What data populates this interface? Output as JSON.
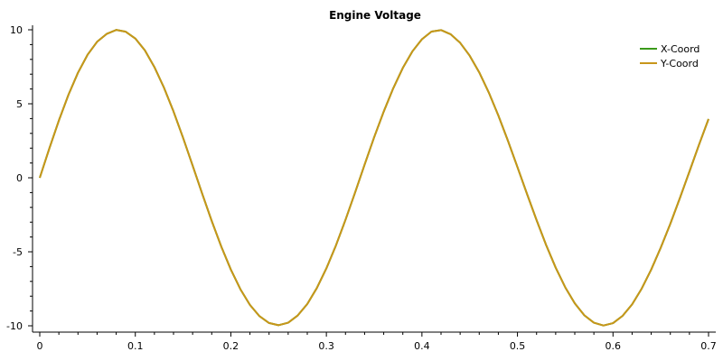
{
  "chart_data": {
    "type": "line",
    "title": "Engine Voltage",
    "xlabel": "",
    "ylabel": "",
    "xlim": [
      0,
      0.7
    ],
    "ylim": [
      -10,
      10
    ],
    "x_ticks": [
      0,
      0.1,
      0.2,
      0.3,
      0.4,
      0.5,
      0.6,
      0.7
    ],
    "x_tick_labels": [
      "0",
      "0.1",
      "0.2",
      "0.3",
      "0.4",
      "0.5",
      "0.6",
      "0.7"
    ],
    "y_ticks": [
      -10,
      -5,
      0,
      5,
      10
    ],
    "y_tick_labels": [
      "-10",
      "-5",
      "0",
      "5",
      "10"
    ],
    "grid": false,
    "legend_position": "top-right",
    "x": [
      0,
      0.01,
      0.02,
      0.03,
      0.04,
      0.05,
      0.06,
      0.07,
      0.08,
      0.09,
      0.1,
      0.11,
      0.12,
      0.13,
      0.14,
      0.15,
      0.16,
      0.17,
      0.18,
      0.19,
      0.2,
      0.21,
      0.22,
      0.23,
      0.24,
      0.25,
      0.26,
      0.27,
      0.28,
      0.29,
      0.3,
      0.31,
      0.32,
      0.33,
      0.34,
      0.35,
      0.36,
      0.37,
      0.38,
      0.39,
      0.4,
      0.41,
      0.42,
      0.43,
      0.44,
      0.45,
      0.46,
      0.47,
      0.48,
      0.49,
      0.5,
      0.51,
      0.52,
      0.53,
      0.54,
      0.55,
      0.56,
      0.57,
      0.58,
      0.59,
      0.6,
      0.61,
      0.62,
      0.63,
      0.64,
      0.65,
      0.66,
      0.67,
      0.68,
      0.69,
      0.7
    ],
    "series": [
      {
        "name": "X-Coord",
        "color": "#3a9a1a",
        "values": [
          0.0,
          1.98,
          3.87,
          5.6,
          7.1,
          8.31,
          9.19,
          9.72,
          9.99,
          9.87,
          9.41,
          8.61,
          7.48,
          6.09,
          4.48,
          2.7,
          0.83,
          -1.07,
          -2.92,
          -4.65,
          -6.2,
          -7.53,
          -8.59,
          -9.35,
          -9.81,
          -9.96,
          -9.79,
          -9.3,
          -8.53,
          -7.45,
          -6.12,
          -4.57,
          -2.84,
          -1.0,
          0.89,
          2.74,
          4.47,
          6.05,
          7.42,
          8.54,
          9.36,
          9.88,
          9.98,
          9.7,
          9.12,
          8.25,
          7.12,
          5.76,
          4.21,
          2.51,
          0.72,
          -1.09,
          -2.86,
          -4.54,
          -6.07,
          -7.4,
          -8.48,
          -9.29,
          -9.79,
          -9.98,
          -9.82,
          -9.33,
          -8.55,
          -7.49,
          -6.2,
          -4.72,
          -3.11,
          -1.37,
          0.42,
          2.23,
          3.97
        ]
      },
      {
        "name": "Y-Coord",
        "color": "#c8961a",
        "values": [
          0.0,
          1.98,
          3.87,
          5.6,
          7.1,
          8.31,
          9.19,
          9.72,
          9.99,
          9.87,
          9.41,
          8.61,
          7.48,
          6.09,
          4.48,
          2.7,
          0.83,
          -1.07,
          -2.92,
          -4.65,
          -6.2,
          -7.53,
          -8.59,
          -9.35,
          -9.81,
          -9.96,
          -9.79,
          -9.3,
          -8.53,
          -7.45,
          -6.12,
          -4.57,
          -2.84,
          -1.0,
          0.89,
          2.74,
          4.47,
          6.05,
          7.42,
          8.54,
          9.36,
          9.88,
          9.98,
          9.7,
          9.12,
          8.25,
          7.12,
          5.76,
          4.21,
          2.51,
          0.72,
          -1.09,
          -2.86,
          -4.54,
          -6.07,
          -7.4,
          -8.48,
          -9.29,
          -9.79,
          -9.98,
          -9.82,
          -9.33,
          -8.55,
          -7.49,
          -6.2,
          -4.72,
          -3.11,
          -1.37,
          0.42,
          2.23,
          3.97
        ]
      }
    ]
  }
}
